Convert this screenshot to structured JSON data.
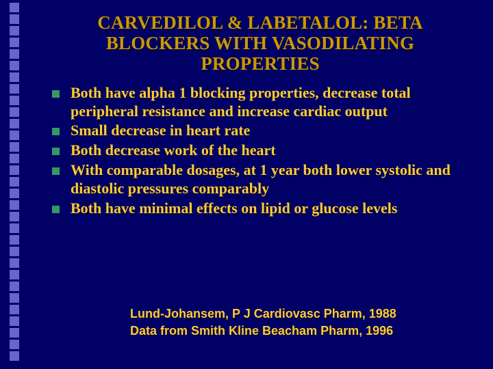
{
  "colors": {
    "background": "#000066",
    "title": "#cc9900",
    "body_text": "#ffcc33",
    "bullet_marker": "#339966",
    "citation": "#ffcc33",
    "decor_square": "#6666cc"
  },
  "title": "CARVEDILOL & LABETALOL: BETA BLOCKERS WITH VASODILATING PROPERTIES",
  "bullets": [
    "Both have alpha 1 blocking properties, decrease total peripheral resistance and increase cardiac output",
    "Small decrease in heart rate",
    "Both decrease work of the heart",
    "With comparable dosages, at 1 year both lower systolic and diastolic pressures comparably",
    "Both have minimal effects on lipid or  glucose levels"
  ],
  "citation_lines": [
    "Lund-Johansem, P J    Cardiovasc Pharm, 1988",
    "Data from Smith Kline Beacham Pharm, 1996"
  ],
  "decor": {
    "square_count": 31
  },
  "typography": {
    "title_fontsize": 27,
    "body_fontsize": 22,
    "citation_fontsize": 18,
    "title_font": "Times New Roman",
    "body_font": "Times New Roman",
    "citation_font": "Arial"
  }
}
